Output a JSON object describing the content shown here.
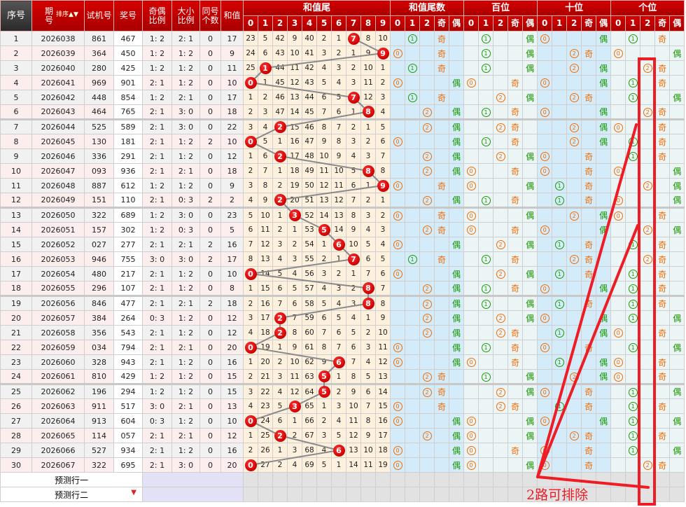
{
  "header": {
    "seq": "序号",
    "period": "期\n号",
    "sort": "排序",
    "trial": "试机号",
    "award": "奖号",
    "odd_even": "奇偶\n比例",
    "big_small": "大小\n比例",
    "same": "同号\n个数",
    "sum": "和值"
  },
  "groups": [
    {
      "title": "和值尾",
      "cols": [
        "0",
        "1",
        "2",
        "3",
        "4",
        "5",
        "6",
        "7",
        "8",
        "9"
      ]
    },
    {
      "title": "和值尾数",
      "cols": [
        "0",
        "1",
        "2",
        "奇",
        "偶"
      ]
    },
    {
      "title": "百位",
      "cols": [
        "0",
        "1",
        "2",
        "奇",
        "偶"
      ]
    },
    {
      "title": "十位",
      "cols": [
        "0",
        "1",
        "2",
        "奇",
        "偶"
      ]
    },
    {
      "title": "个位",
      "cols": [
        "0",
        "1",
        "2",
        "奇",
        "偶"
      ]
    }
  ],
  "rows": [
    {
      "seq": 1,
      "period": "2026038",
      "trial": "861",
      "award": "467",
      "odd_even": "1: 2",
      "big_small": "2: 1",
      "same": 0,
      "sum": 17,
      "tail": 7,
      "omission": [
        23,
        5,
        42,
        9,
        40,
        2,
        1,
        7,
        8,
        10
      ],
      "marks": [
        [
          1,
          "奇"
        ],
        [
          1,
          "偶"
        ],
        [
          0,
          "偶"
        ],
        [
          1,
          "奇"
        ]
      ]
    },
    {
      "seq": 2,
      "period": "2026039",
      "trial": "364",
      "award": "450",
      "odd_even": "1: 2",
      "big_small": "1: 2",
      "same": 0,
      "sum": 9,
      "tail": 9,
      "omission": [
        24,
        6,
        43,
        10,
        41,
        3,
        2,
        1,
        9,
        9
      ],
      "marks": [
        [
          0,
          "奇"
        ],
        [
          1,
          "偶"
        ],
        [
          2,
          "奇"
        ],
        [
          0,
          "偶"
        ]
      ]
    },
    {
      "seq": 3,
      "period": "2026040",
      "trial": "280",
      "award": "425",
      "odd_even": "1: 2",
      "big_small": "1: 2",
      "same": 0,
      "sum": 11,
      "tail": 1,
      "omission": [
        25,
        1,
        44,
        11,
        42,
        4,
        3,
        2,
        10,
        1
      ],
      "marks": [
        [
          1,
          "奇"
        ],
        [
          1,
          "偶"
        ],
        [
          2,
          "偶"
        ],
        [
          2,
          "奇"
        ]
      ]
    },
    {
      "seq": 4,
      "period": "2026041",
      "trial": "969",
      "award": "901",
      "odd_even": "2: 1",
      "big_small": "1: 2",
      "same": 0,
      "sum": 10,
      "tail": 0,
      "omission": [
        0,
        1,
        45,
        12,
        43,
        5,
        4,
        3,
        11,
        2
      ],
      "marks": [
        [
          0,
          "偶"
        ],
        [
          0,
          "奇"
        ],
        [
          0,
          "偶"
        ],
        [
          1,
          "奇"
        ]
      ]
    },
    {
      "seq": 5,
      "period": "2026042",
      "trial": "448",
      "award": "854",
      "odd_even": "1: 2",
      "big_small": "2: 1",
      "same": 0,
      "sum": 17,
      "tail": 7,
      "omission": [
        1,
        2,
        46,
        13,
        44,
        6,
        5,
        7,
        12,
        3
      ],
      "marks": [
        [
          1,
          "奇"
        ],
        [
          2,
          "偶"
        ],
        [
          2,
          "奇"
        ],
        [
          1,
          "偶"
        ]
      ]
    },
    {
      "seq": 6,
      "period": "2026043",
      "trial": "464",
      "award": "765",
      "odd_even": "2: 1",
      "big_small": "3: 0",
      "same": 0,
      "sum": 18,
      "tail": 8,
      "omission": [
        2,
        3,
        47,
        14,
        45,
        7,
        6,
        1,
        8,
        4
      ],
      "marks": [
        [
          2,
          "偶"
        ],
        [
          1,
          "奇"
        ],
        [
          0,
          "偶"
        ],
        [
          2,
          "奇"
        ]
      ]
    },
    {
      "seq": 7,
      "period": "2026044",
      "trial": "525",
      "award": "589",
      "odd_even": "2: 1",
      "big_small": "3: 0",
      "same": 0,
      "sum": 22,
      "tail": 2,
      "omission": [
        3,
        4,
        2,
        15,
        46,
        8,
        7,
        2,
        1,
        5
      ],
      "marks": [
        [
          2,
          "偶"
        ],
        [
          2,
          "奇"
        ],
        [
          2,
          "偶"
        ],
        [
          0,
          "奇"
        ]
      ]
    },
    {
      "seq": 8,
      "period": "2026045",
      "trial": "130",
      "award": "181",
      "odd_even": "2: 1",
      "big_small": "1: 2",
      "same": 2,
      "sum": 10,
      "tail": 0,
      "omission": [
        0,
        5,
        1,
        16,
        47,
        9,
        8,
        3,
        2,
        6
      ],
      "marks": [
        [
          0,
          "偶"
        ],
        [
          1,
          "奇"
        ],
        [
          2,
          "偶"
        ],
        [
          1,
          "奇"
        ]
      ]
    },
    {
      "seq": 9,
      "period": "2026046",
      "trial": "336",
      "award": "291",
      "odd_even": "2: 1",
      "big_small": "1: 2",
      "same": 0,
      "sum": 12,
      "tail": 2,
      "omission": [
        1,
        6,
        2,
        17,
        48,
        10,
        9,
        4,
        3,
        7
      ],
      "marks": [
        [
          2,
          "偶"
        ],
        [
          2,
          "偶"
        ],
        [
          0,
          "奇"
        ],
        [
          1,
          "奇"
        ]
      ]
    },
    {
      "seq": 10,
      "period": "2026047",
      "trial": "093",
      "award": "936",
      "odd_even": "2: 1",
      "big_small": "2: 1",
      "same": 0,
      "sum": 18,
      "tail": 8,
      "omission": [
        2,
        7,
        1,
        18,
        49,
        11,
        10,
        5,
        8,
        8
      ],
      "marks": [
        [
          2,
          "偶"
        ],
        [
          0,
          "奇"
        ],
        [
          0,
          "奇"
        ],
        [
          0,
          "偶"
        ]
      ]
    },
    {
      "seq": 11,
      "period": "2026048",
      "trial": "887",
      "award": "612",
      "odd_even": "1: 2",
      "big_small": "1: 2",
      "same": 0,
      "sum": 9,
      "tail": 9,
      "omission": [
        3,
        8,
        2,
        19,
        50,
        12,
        11,
        6,
        1,
        9
      ],
      "marks": [
        [
          0,
          "奇"
        ],
        [
          0,
          "偶"
        ],
        [
          1,
          "奇"
        ],
        [
          2,
          "偶"
        ]
      ]
    },
    {
      "seq": 12,
      "period": "2026049",
      "trial": "151",
      "award": "110",
      "odd_even": "2: 1",
      "big_small": "0: 3",
      "same": 2,
      "sum": 2,
      "tail": 2,
      "omission": [
        4,
        9,
        2,
        20,
        51,
        13,
        12,
        7,
        2,
        1
      ],
      "marks": [
        [
          2,
          "偶"
        ],
        [
          1,
          "奇"
        ],
        [
          1,
          "奇"
        ],
        [
          0,
          "偶"
        ]
      ]
    },
    {
      "seq": 13,
      "period": "2026050",
      "trial": "322",
      "award": "689",
      "odd_even": "1: 2",
      "big_small": "3: 0",
      "same": 0,
      "sum": 23,
      "tail": 3,
      "omission": [
        5,
        10,
        1,
        3,
        52,
        14,
        13,
        8,
        3,
        2
      ],
      "marks": [
        [
          0,
          "奇"
        ],
        [
          0,
          "偶"
        ],
        [
          2,
          "偶"
        ],
        [
          0,
          "奇"
        ]
      ]
    },
    {
      "seq": 14,
      "period": "2026051",
      "trial": "157",
      "award": "302",
      "odd_even": "1: 2",
      "big_small": "0: 3",
      "same": 0,
      "sum": 5,
      "tail": 5,
      "omission": [
        6,
        11,
        2,
        1,
        53,
        5,
        14,
        9,
        4,
        3
      ],
      "marks": [
        [
          2,
          "奇"
        ],
        [
          0,
          "奇"
        ],
        [
          0,
          "偶"
        ],
        [
          2,
          "偶"
        ]
      ]
    },
    {
      "seq": 15,
      "period": "2026052",
      "trial": "027",
      "award": "277",
      "odd_even": "2: 1",
      "big_small": "2: 1",
      "same": 2,
      "sum": 16,
      "tail": 6,
      "omission": [
        7,
        12,
        3,
        2,
        54,
        1,
        6,
        10,
        5,
        4
      ],
      "marks": [
        [
          0,
          "偶"
        ],
        [
          2,
          "偶"
        ],
        [
          1,
          "奇"
        ],
        [
          1,
          "奇"
        ]
      ]
    },
    {
      "seq": 16,
      "period": "2026053",
      "trial": "946",
      "award": "755",
      "odd_even": "3: 0",
      "big_small": "3: 0",
      "same": 2,
      "sum": 17,
      "tail": 7,
      "omission": [
        8,
        13,
        4,
        3,
        55,
        2,
        1,
        7,
        6,
        5
      ],
      "marks": [
        [
          1,
          "奇"
        ],
        [
          1,
          "奇"
        ],
        [
          2,
          "奇"
        ],
        [
          2,
          "奇"
        ]
      ]
    },
    {
      "seq": 17,
      "period": "2026054",
      "trial": "480",
      "award": "217",
      "odd_even": "2: 1",
      "big_small": "1: 2",
      "same": 0,
      "sum": 10,
      "tail": 0,
      "omission": [
        0,
        14,
        5,
        4,
        56,
        3,
        2,
        1,
        7,
        6
      ],
      "marks": [
        [
          0,
          "偶"
        ],
        [
          2,
          "偶"
        ],
        [
          1,
          "奇"
        ],
        [
          1,
          "奇"
        ]
      ]
    },
    {
      "seq": 18,
      "period": "2026055",
      "trial": "296",
      "award": "107",
      "odd_even": "2: 1",
      "big_small": "1: 2",
      "same": 0,
      "sum": 8,
      "tail": 8,
      "omission": [
        1,
        15,
        6,
        5,
        57,
        4,
        3,
        2,
        8,
        7
      ],
      "marks": [
        [
          2,
          "偶"
        ],
        [
          1,
          "奇"
        ],
        [
          0,
          "偶"
        ],
        [
          1,
          "奇"
        ]
      ]
    },
    {
      "seq": 19,
      "period": "2026056",
      "trial": "846",
      "award": "477",
      "odd_even": "2: 1",
      "big_small": "2: 1",
      "same": 2,
      "sum": 18,
      "tail": 8,
      "omission": [
        2,
        16,
        7,
        6,
        58,
        5,
        4,
        3,
        8,
        8
      ],
      "marks": [
        [
          2,
          "偶"
        ],
        [
          1,
          "偶"
        ],
        [
          1,
          "奇"
        ],
        [
          1,
          "奇"
        ]
      ]
    },
    {
      "seq": 20,
      "period": "2026057",
      "trial": "384",
      "award": "264",
      "odd_even": "0: 3",
      "big_small": "1: 2",
      "same": 0,
      "sum": 12,
      "tail": 2,
      "omission": [
        3,
        17,
        2,
        7,
        59,
        6,
        5,
        4,
        1,
        9
      ],
      "marks": [
        [
          2,
          "偶"
        ],
        [
          2,
          "偶"
        ],
        [
          0,
          "偶"
        ],
        [
          1,
          "偶"
        ]
      ]
    },
    {
      "seq": 21,
      "period": "2026058",
      "trial": "356",
      "award": "543",
      "odd_even": "2: 1",
      "big_small": "1: 2",
      "same": 0,
      "sum": 12,
      "tail": 2,
      "omission": [
        4,
        18,
        2,
        8,
        60,
        7,
        6,
        5,
        2,
        10
      ],
      "marks": [
        [
          2,
          "偶"
        ],
        [
          2,
          "奇"
        ],
        [
          1,
          "偶"
        ],
        [
          0,
          "奇"
        ]
      ]
    },
    {
      "seq": 22,
      "period": "2026059",
      "trial": "034",
      "award": "794",
      "odd_even": "2: 1",
      "big_small": "2: 1",
      "same": 0,
      "sum": 20,
      "tail": 0,
      "omission": [
        0,
        19,
        1,
        9,
        61,
        8,
        7,
        6,
        3,
        11
      ],
      "marks": [
        [
          0,
          "偶"
        ],
        [
          1,
          "奇"
        ],
        [
          0,
          "奇"
        ],
        [
          1,
          "偶"
        ]
      ]
    },
    {
      "seq": 23,
      "period": "2026060",
      "trial": "328",
      "award": "943",
      "odd_even": "2: 1",
      "big_small": "1: 2",
      "same": 0,
      "sum": 16,
      "tail": 6,
      "omission": [
        1,
        20,
        2,
        10,
        62,
        9,
        6,
        7,
        4,
        12
      ],
      "marks": [
        [
          0,
          "偶"
        ],
        [
          0,
          "奇"
        ],
        [
          1,
          "偶"
        ],
        [
          0,
          "奇"
        ]
      ]
    },
    {
      "seq": 24,
      "period": "2026061",
      "trial": "810",
      "award": "429",
      "odd_even": "1: 2",
      "big_small": "1: 2",
      "same": 0,
      "sum": 15,
      "tail": 5,
      "omission": [
        2,
        21,
        3,
        11,
        63,
        5,
        1,
        8,
        5,
        13
      ],
      "marks": [
        [
          2,
          "奇"
        ],
        [
          1,
          "偶"
        ],
        [
          2,
          "偶"
        ],
        [
          0,
          "奇"
        ]
      ]
    },
    {
      "seq": 25,
      "period": "2026062",
      "trial": "196",
      "award": "294",
      "odd_even": "1: 2",
      "big_small": "1: 2",
      "same": 0,
      "sum": 15,
      "tail": 5,
      "omission": [
        3,
        22,
        4,
        12,
        64,
        5,
        2,
        9,
        6,
        14
      ],
      "marks": [
        [
          2,
          "奇"
        ],
        [
          2,
          "偶"
        ],
        [
          0,
          "奇"
        ],
        [
          1,
          "偶"
        ]
      ]
    },
    {
      "seq": 26,
      "period": "2026063",
      "trial": "911",
      "award": "517",
      "odd_even": "3: 0",
      "big_small": "2: 1",
      "same": 0,
      "sum": 13,
      "tail": 3,
      "omission": [
        4,
        23,
        5,
        3,
        65,
        1,
        3,
        10,
        7,
        15
      ],
      "marks": [
        [
          0,
          "奇"
        ],
        [
          2,
          "奇"
        ],
        [
          1,
          "奇"
        ],
        [
          1,
          "奇"
        ]
      ]
    },
    {
      "seq": 27,
      "period": "2026064",
      "trial": "913",
      "award": "604",
      "odd_even": "0: 3",
      "big_small": "1: 2",
      "same": 0,
      "sum": 10,
      "tail": 0,
      "omission": [
        0,
        24,
        6,
        1,
        66,
        2,
        4,
        11,
        8,
        16
      ],
      "marks": [
        [
          0,
          "偶"
        ],
        [
          0,
          "偶"
        ],
        [
          0,
          "偶"
        ],
        [
          1,
          "偶"
        ]
      ]
    },
    {
      "seq": 28,
      "period": "2026065",
      "trial": "114",
      "award": "057",
      "odd_even": "2: 1",
      "big_small": "2: 1",
      "same": 0,
      "sum": 12,
      "tail": 2,
      "omission": [
        1,
        25,
        2,
        2,
        67,
        3,
        5,
        12,
        9,
        17
      ],
      "marks": [
        [
          2,
          "偶"
        ],
        [
          0,
          "偶"
        ],
        [
          2,
          "奇"
        ],
        [
          1,
          "奇"
        ]
      ]
    },
    {
      "seq": 29,
      "period": "2026066",
      "trial": "527",
      "award": "934",
      "odd_even": "2: 1",
      "big_small": "1: 2",
      "same": 0,
      "sum": 16,
      "tail": 6,
      "omission": [
        2,
        26,
        1,
        3,
        68,
        4,
        6,
        13,
        10,
        18
      ],
      "marks": [
        [
          0,
          "偶"
        ],
        [
          0,
          "奇"
        ],
        [
          0,
          "奇"
        ],
        [
          1,
          "偶"
        ]
      ]
    },
    {
      "seq": 30,
      "period": "2026067",
      "trial": "322",
      "award": "695",
      "odd_even": "2: 1",
      "big_small": "3: 0",
      "same": 0,
      "sum": 20,
      "tail": 0,
      "omission": [
        0,
        27,
        2,
        4,
        69,
        5,
        1,
        14,
        11,
        19
      ],
      "marks": [
        [
          0,
          "偶"
        ],
        [
          0,
          "偶"
        ],
        [
          0,
          "奇"
        ],
        [
          2,
          "奇"
        ]
      ]
    }
  ],
  "predict": [
    "预测行一",
    "预测行二"
  ],
  "annotation": {
    "text": "2路可排除",
    "color": "#ee1c25"
  },
  "colors": {
    "header_red": "#c00000",
    "ball_red": "#dd0000",
    "road_0_2": "#f26a00",
    "road_1": "#1a9a00",
    "odd": "#f26a00",
    "even": "#1a9a00"
  }
}
